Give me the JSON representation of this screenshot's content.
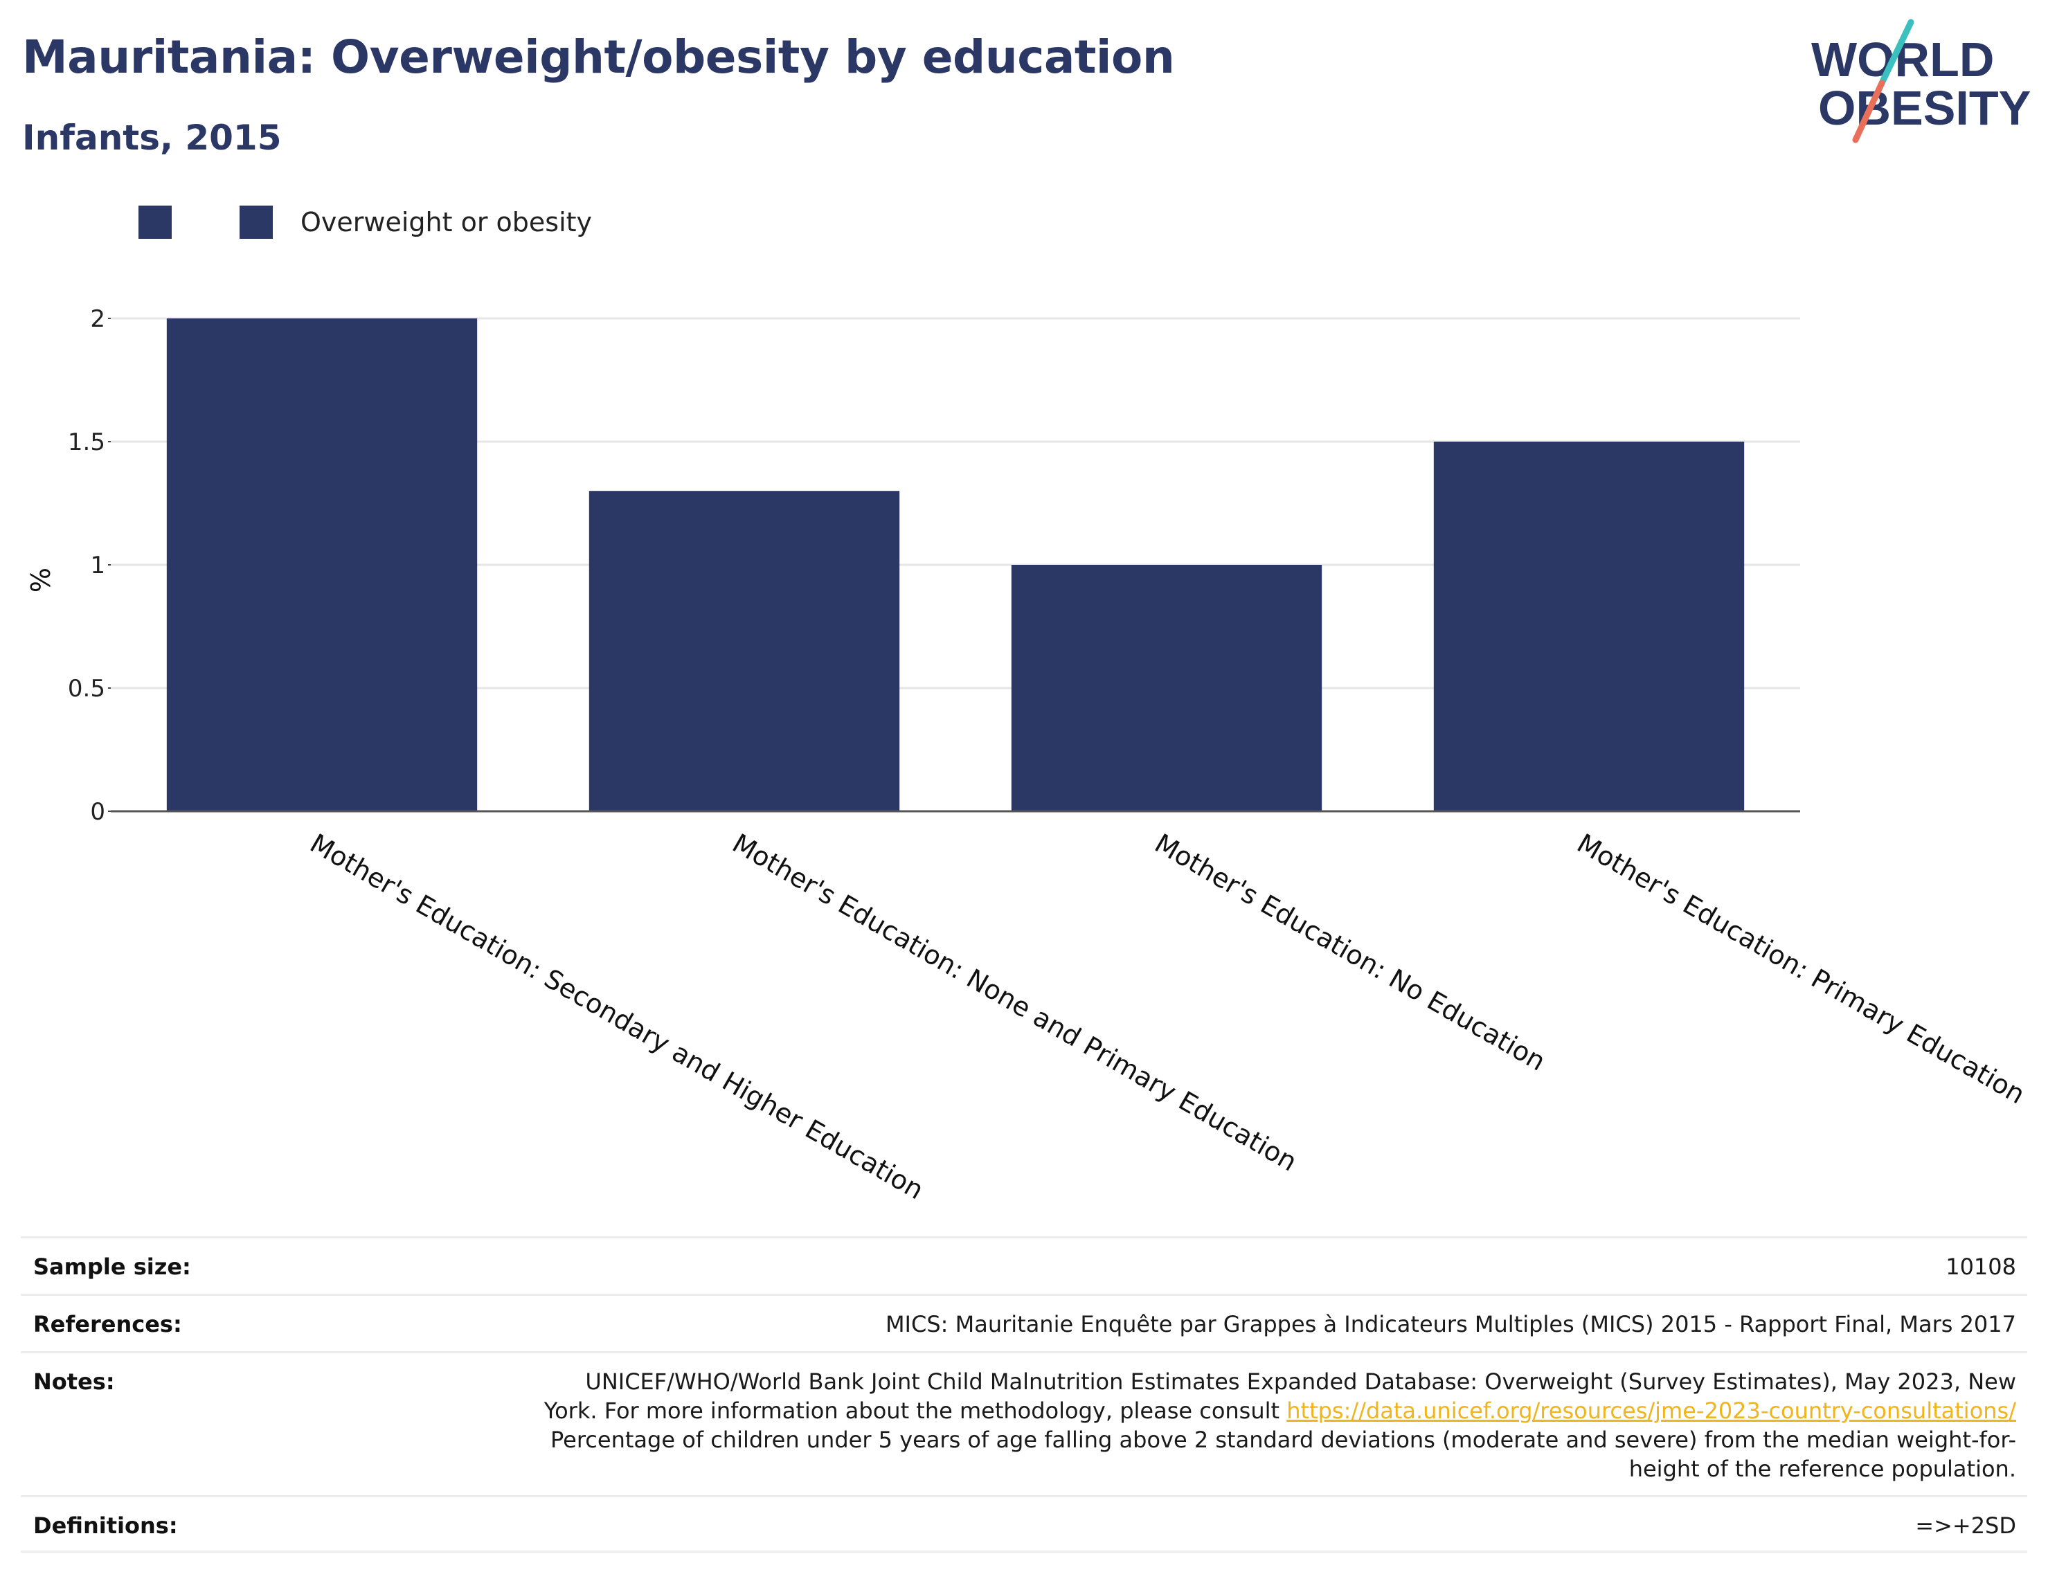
{
  "header": {
    "title": "Mauritania: Overweight/obesity by education",
    "subtitle": "Infants, 2015"
  },
  "logo": {
    "line1": "WORLD",
    "line2": "OBESITY",
    "colors": {
      "text": "#2b3765",
      "slash_top": "#3bbfbf",
      "slash_bottom": "#e8705a"
    }
  },
  "legend": {
    "items": [
      {
        "label": "",
        "color": "#2b3765"
      },
      {
        "label": "Overweight or obesity",
        "color": "#2b3765"
      }
    ]
  },
  "chart_data": {
    "type": "bar",
    "categories": [
      "Mother's Education: Secondary and Higher Education",
      "Mother's Education: None and Primary Education",
      "Mother's Education: No Education",
      "Mother's Education: Primary Education"
    ],
    "series": [
      {
        "name": "Overweight or obesity",
        "values": [
          2.0,
          1.3,
          1.0,
          1.5
        ],
        "color": "#2b3765"
      }
    ],
    "ylabel": "%",
    "xlabel": "",
    "ylim": [
      0,
      2.0
    ],
    "yticks": [
      0,
      0.5,
      1,
      1.5,
      2
    ],
    "ytick_labels": [
      "0",
      "0.5",
      "1",
      "1.5",
      "2"
    ],
    "grid": true,
    "legend_position": "top-left"
  },
  "footer": {
    "sample_size": {
      "label": "Sample size:",
      "value": "10108"
    },
    "references": {
      "label": "References:",
      "value": "MICS: Mauritanie Enquête par Grappes à Indicateurs Multiples (MICS) 2015 - Rapport Final, Mars 2017"
    },
    "notes": {
      "label": "Notes:",
      "line1": "UNICEF/WHO/World Bank Joint Child Malnutrition Estimates Expanded Database: Overweight (Survey Estimates), May 2023, New",
      "line2_prefix": "York. For more information about the methodology, please consult ",
      "link_text": "https://data.unicef.org/resources/jme-2023-country-consultations/",
      "line3": "Percentage of children under 5 years of age falling above 2 standard deviations (moderate and severe) from the median weight-for-",
      "line4": "height of the reference population."
    },
    "definitions": {
      "label": "Definitions:",
      "value": "=>+2SD"
    }
  }
}
